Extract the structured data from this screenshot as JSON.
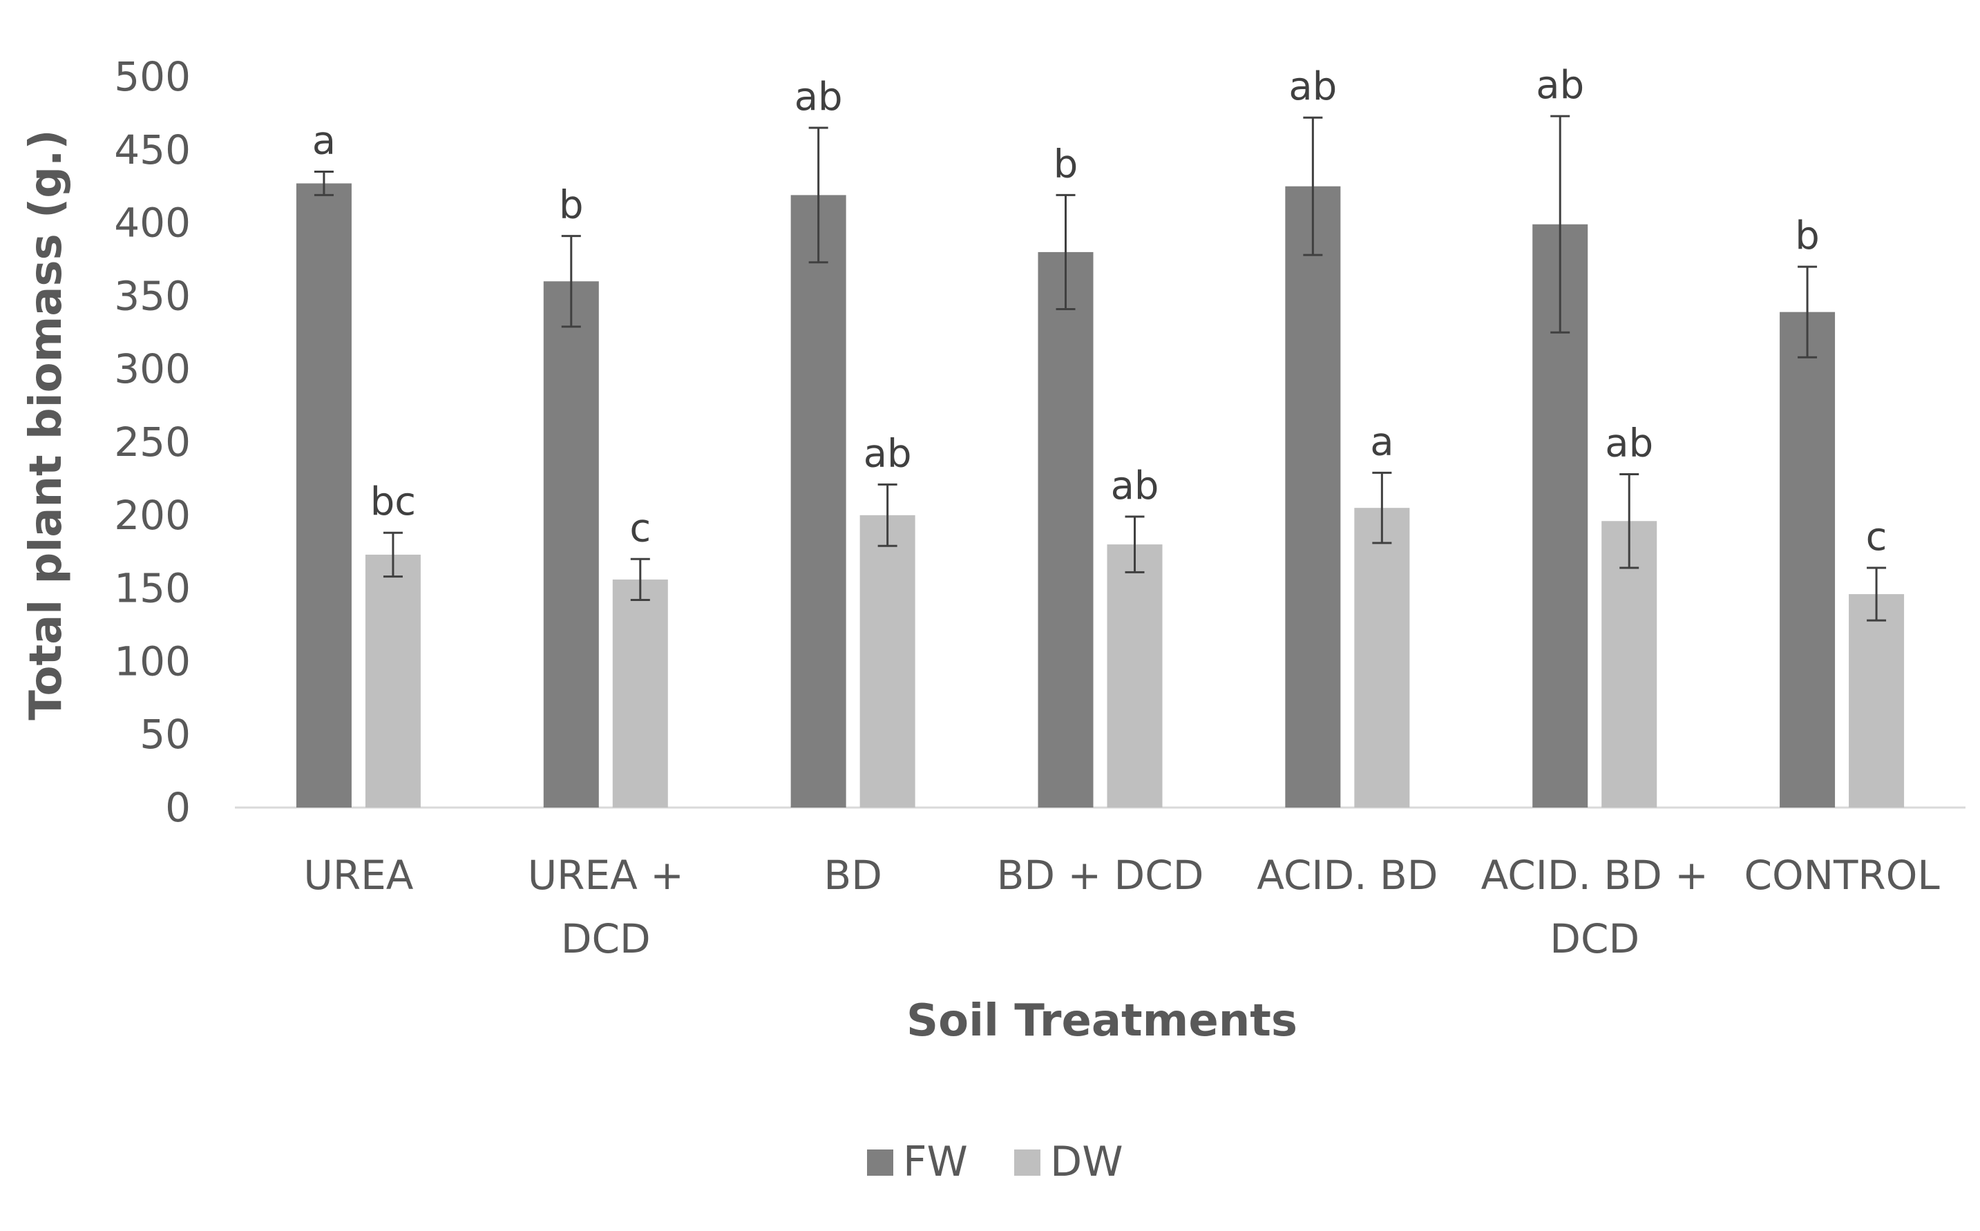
{
  "chart_data": {
    "type": "bar",
    "title": "",
    "xlabel": "Soil Treatments",
    "ylabel": "Total plant biomass (g.)",
    "ylim": [
      0,
      500
    ],
    "yticks": [
      0,
      50,
      100,
      150,
      200,
      250,
      300,
      350,
      400,
      450,
      500
    ],
    "grid": false,
    "legend_position": "bottom",
    "categories": [
      [
        "UREA"
      ],
      [
        "UREA +",
        "DCD"
      ],
      [
        "BD"
      ],
      [
        "BD + DCD"
      ],
      [
        "ACID. BD"
      ],
      [
        "ACID. BD +",
        "DCD"
      ],
      [
        "CONTROL"
      ]
    ],
    "series": [
      {
        "name": "FW",
        "color": "#7f7f7f",
        "values": [
          427,
          360,
          419,
          380,
          425,
          399,
          339
        ],
        "error": [
          8,
          31,
          46,
          39,
          47,
          74,
          31
        ],
        "letters": [
          "a",
          "b",
          "ab",
          "b",
          "ab",
          "ab",
          "b"
        ]
      },
      {
        "name": "DW",
        "color": "#bfbfbf",
        "values": [
          173,
          156,
          200,
          180,
          205,
          196,
          146
        ],
        "error": [
          15,
          14,
          21,
          19,
          24,
          32,
          18
        ],
        "letters": [
          "bc",
          "c",
          "ab",
          "ab",
          "a",
          "ab",
          "c"
        ]
      }
    ]
  }
}
